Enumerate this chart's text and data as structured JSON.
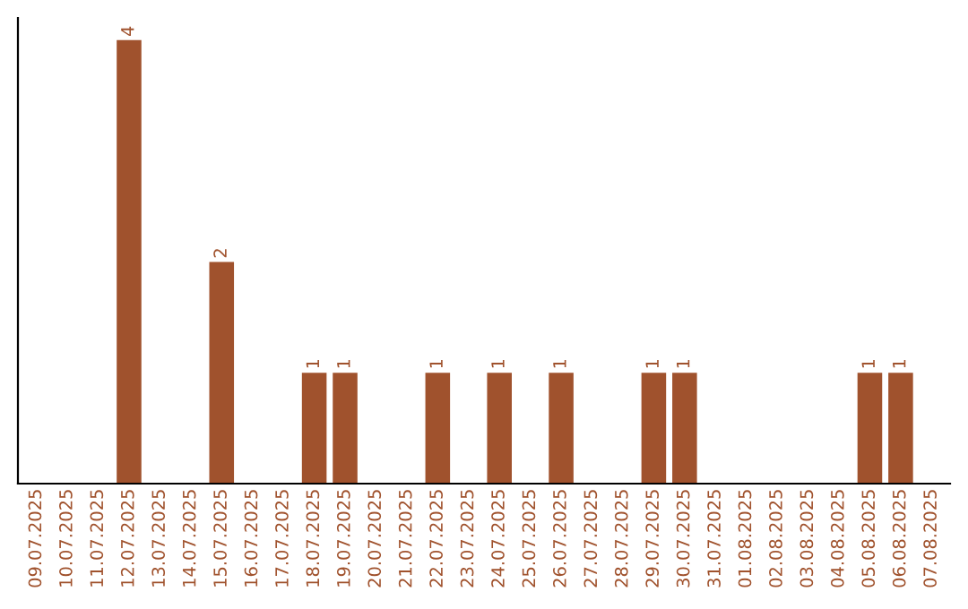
{
  "chart_data": {
    "type": "bar",
    "categories": [
      "09.07.2025",
      "10.07.2025",
      "11.07.2025",
      "12.07.2025",
      "13.07.2025",
      "14.07.2025",
      "15.07.2025",
      "16.07.2025",
      "17.07.2025",
      "18.07.2025",
      "19.07.2025",
      "20.07.2025",
      "21.07.2025",
      "22.07.2025",
      "23.07.2025",
      "24.07.2025",
      "25.07.2025",
      "26.07.2025",
      "27.07.2025",
      "28.07.2025",
      "29.07.2025",
      "30.07.2025",
      "31.07.2025",
      "01.08.2025",
      "02.08.2025",
      "03.08.2025",
      "04.08.2025",
      "05.08.2025",
      "06.08.2025",
      "07.08.2025"
    ],
    "values": [
      0,
      0,
      0,
      4,
      0,
      0,
      2,
      0,
      0,
      1,
      1,
      0,
      0,
      1,
      0,
      1,
      0,
      1,
      0,
      0,
      1,
      1,
      0,
      0,
      0,
      0,
      0,
      1,
      1,
      0
    ],
    "color": "#a0522d",
    "ylim": [
      0,
      4.2
    ],
    "tick_labels": "x",
    "value_labels": [
      null,
      null,
      null,
      "4",
      null,
      null,
      "2",
      null,
      null,
      "1",
      "1",
      null,
      null,
      "1",
      null,
      "1",
      null,
      "1",
      null,
      null,
      "1",
      "1",
      null,
      null,
      null,
      null,
      null,
      "1",
      "1",
      null
    ],
    "grid": false,
    "legend": false
  }
}
